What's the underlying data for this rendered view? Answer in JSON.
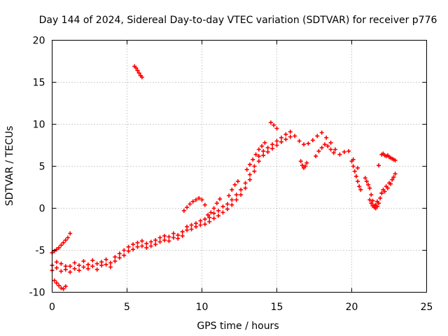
{
  "chart_data": {
    "type": "scatter",
    "title": "Day 144 of 2024, Sidereal Day-to-day VTEC variation (SDTVAR) for receiver p776",
    "xlabel": "GPS time / hours",
    "ylabel": "SDTVAR / TECUs",
    "xlim": [
      0,
      25
    ],
    "ylim": [
      -10,
      20
    ],
    "xticks": [
      0,
      5,
      10,
      15,
      20,
      25
    ],
    "yticks": [
      -10,
      -5,
      0,
      5,
      10,
      15,
      20
    ],
    "grid": true,
    "marker": "+",
    "series": [
      {
        "name": "SDTVAR",
        "color": "#ff0000",
        "segments": [
          {
            "x": [
              0.0,
              0.3,
              0.6,
              0.9,
              1.2,
              1.5,
              1.8,
              2.1,
              2.4,
              2.7,
              3.0,
              3.3,
              3.6,
              3.9,
              4.2,
              4.5,
              4.8,
              5.1,
              5.4,
              5.7,
              6.0,
              6.3,
              6.6,
              6.9,
              7.2,
              7.5,
              7.8,
              8.1,
              8.4,
              8.7,
              9.0,
              9.3,
              9.6,
              9.9,
              10.2,
              10.5,
              10.8,
              11.1,
              11.4,
              11.7,
              12.0,
              12.3,
              12.6,
              12.9,
              13.2,
              13.5,
              13.8,
              14.1,
              14.4,
              14.7,
              15.0,
              15.3,
              15.6,
              15.9,
              16.2,
              16.5,
              16.8,
              17.1,
              17.4,
              17.7,
              18.0,
              18.3,
              18.6,
              18.9,
              19.2,
              19.5,
              19.8,
              20.1,
              20.4
            ],
            "y": [
              -6.8,
              -7.1,
              -6.6,
              -7.3,
              -6.9,
              -6.5,
              -6.8,
              -6.3,
              -6.7,
              -6.2,
              -6.6,
              -6.4,
              -6.1,
              -6.5,
              -5.8,
              -5.4,
              -5.0,
              -4.6,
              -4.3,
              -4.1,
              -3.9,
              -4.2,
              -4.0,
              -3.8,
              -3.5,
              -3.3,
              -3.4,
              -3.0,
              -3.2,
              -2.8,
              -2.2,
              -2.0,
              -1.8,
              -1.5,
              -1.3,
              -1.1,
              -0.6,
              -0.3,
              0.2,
              0.5,
              1.0,
              1.6,
              2.2,
              3.0,
              4.0,
              5.0,
              6.2,
              6.8,
              7.2,
              7.6,
              8.0,
              8.4,
              8.8,
              9.1,
              8.6,
              8.0,
              7.6,
              7.7,
              8.1,
              8.6,
              9.0,
              8.4,
              7.8,
              7.0,
              6.4,
              6.7,
              6.8,
              5.8,
              4.8
            ]
          },
          {
            "x": [
              0.0,
              0.3,
              0.6,
              0.9,
              1.2,
              1.5,
              1.8,
              2.1,
              2.4,
              2.7,
              3.0,
              3.3,
              3.6,
              3.9,
              4.2,
              4.5,
              4.8,
              5.1,
              5.4,
              5.7,
              6.0,
              6.3,
              6.6,
              6.9,
              7.2,
              7.5,
              7.8,
              8.1,
              8.4,
              8.7,
              9.0,
              9.3,
              9.6,
              9.9,
              10.2,
              10.5,
              10.8,
              11.1,
              11.4,
              11.7,
              12.0,
              12.3,
              12.6,
              12.9,
              13.2,
              13.5,
              13.8,
              14.1,
              14.4,
              14.7,
              15.0,
              15.3,
              15.6,
              15.9
            ],
            "y": [
              -7.4,
              -6.4,
              -7.5,
              -6.9,
              -7.6,
              -7.2,
              -7.4,
              -7.0,
              -7.2,
              -6.9,
              -7.3,
              -6.8,
              -6.7,
              -7.0,
              -6.3,
              -5.9,
              -5.6,
              -5.1,
              -4.9,
              -4.6,
              -4.5,
              -4.7,
              -4.5,
              -4.3,
              -4.0,
              -3.8,
              -3.9,
              -3.5,
              -3.6,
              -3.3,
              -2.6,
              -2.5,
              -2.2,
              -2.0,
              -1.9,
              -1.6,
              -1.2,
              -0.9,
              -0.5,
              -0.1,
              0.4,
              1.0,
              1.6,
              2.4,
              3.4,
              4.4,
              5.6,
              6.3,
              6.7,
              7.1,
              7.5,
              7.9,
              8.2,
              8.5
            ]
          },
          {
            "x": [
              0.0,
              0.15,
              0.3,
              0.45,
              0.6,
              0.75,
              0.9,
              1.05,
              1.2
            ],
            "y": [
              -5.3,
              -5.1,
              -4.9,
              -4.7,
              -4.4,
              -4.1,
              -3.8,
              -3.5,
              -3.0
            ]
          },
          {
            "x": [
              0.15,
              0.3,
              0.45,
              0.6,
              0.75,
              0.9
            ],
            "y": [
              -8.6,
              -8.9,
              -9.2,
              -9.5,
              -9.6,
              -9.3
            ]
          },
          {
            "x": [
              5.5,
              5.6,
              5.7,
              5.8,
              5.9,
              6.0
            ],
            "y": [
              16.9,
              16.7,
              16.4,
              16.1,
              15.8,
              15.6
            ]
          },
          {
            "x": [
              8.8,
              9.0,
              9.2,
              9.4,
              9.6,
              9.8,
              10.0,
              10.2
            ],
            "y": [
              -0.3,
              0.1,
              0.5,
              0.8,
              1.0,
              1.2,
              1.0,
              0.4
            ]
          },
          {
            "x": [
              10.4,
              10.6,
              10.8,
              11.0,
              11.2
            ],
            "y": [
              -0.8,
              -0.5,
              0.0,
              0.6,
              1.1
            ]
          },
          {
            "x": [
              11.8,
              12.0,
              12.2,
              12.4
            ],
            "y": [
              1.5,
              2.2,
              2.8,
              3.2
            ]
          },
          {
            "x": [
              13.0,
              13.2,
              13.4,
              13.6,
              13.8,
              14.0,
              14.2
            ],
            "y": [
              4.6,
              5.2,
              5.8,
              6.4,
              7.0,
              7.4,
              7.8
            ]
          },
          {
            "x": [
              14.6,
              14.8,
              15.0
            ],
            "y": [
              10.2,
              9.9,
              9.5
            ]
          },
          {
            "x": [
              16.6,
              16.7,
              16.8,
              16.9,
              17.0
            ],
            "y": [
              5.6,
              5.1,
              4.8,
              5.0,
              5.4
            ]
          },
          {
            "x": [
              17.6,
              17.8,
              18.0,
              18.2,
              18.4,
              18.6,
              18.8
            ],
            "y": [
              6.2,
              6.8,
              7.2,
              7.6,
              7.4,
              7.0,
              6.6
            ]
          },
          {
            "x": [
              20.0,
              20.1,
              20.2,
              20.3,
              20.4,
              20.5,
              20.6
            ],
            "y": [
              5.6,
              5.0,
              4.4,
              3.8,
              3.2,
              2.6,
              2.2
            ]
          },
          {
            "x": [
              20.9,
              21.0,
              21.1,
              21.2,
              21.3,
              21.4,
              21.5,
              21.6,
              21.7,
              21.8,
              21.9,
              22.0
            ],
            "y": [
              3.6,
              3.2,
              2.8,
              2.4,
              1.6,
              0.9,
              0.3,
              0.0,
              0.2,
              0.6,
              1.2,
              1.8
            ]
          },
          {
            "x": [
              21.2,
              21.3,
              21.4,
              21.5,
              21.6,
              21.7
            ],
            "y": [
              1.0,
              0.6,
              0.3,
              0.1,
              0.4,
              0.8
            ]
          },
          {
            "x": [
              21.8
            ],
            "y": [
              5.1
            ]
          },
          {
            "x": [
              22.0,
              22.1,
              22.2,
              22.3,
              22.4,
              22.5,
              22.6,
              22.7,
              22.8,
              22.9
            ],
            "y": [
              6.4,
              6.5,
              6.3,
              6.2,
              6.3,
              6.1,
              6.0,
              5.9,
              5.8,
              5.7
            ]
          },
          {
            "x": [
              22.0,
              22.1,
              22.2,
              22.3,
              22.4,
              22.5,
              22.6,
              22.7,
              22.8,
              22.9
            ],
            "y": [
              1.8,
              2.2,
              2.0,
              2.6,
              2.4,
              3.0,
              2.9,
              3.4,
              3.7,
              4.1
            ]
          }
        ]
      }
    ]
  }
}
